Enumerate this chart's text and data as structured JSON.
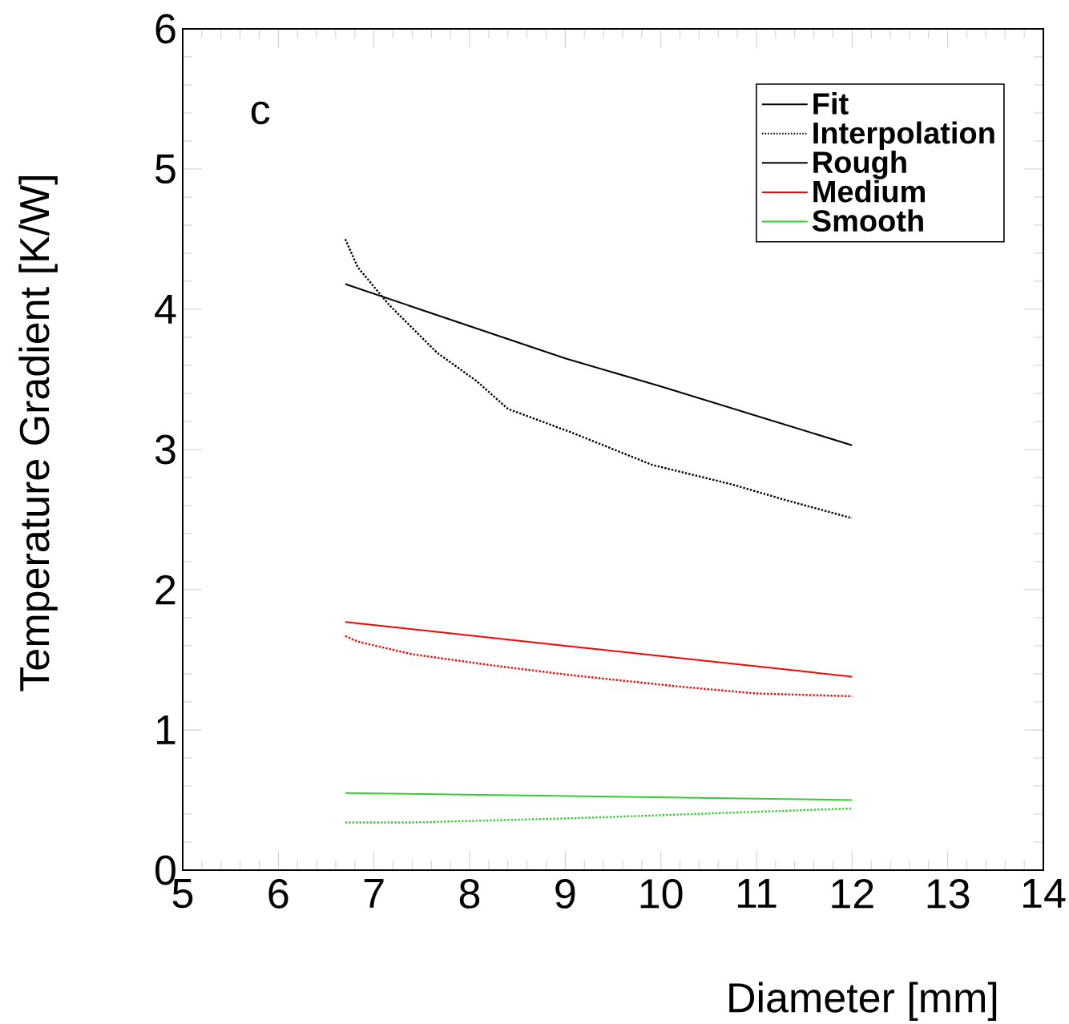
{
  "chart_data": {
    "type": "line",
    "xlabel": "Diameter [mm]",
    "ylabel": "Temperature Gradient [K/W]",
    "annotations": [
      "c",
      "Fit",
      "Interpolation"
    ],
    "xlim": [
      5,
      14
    ],
    "ylim": [
      0,
      6
    ],
    "xticks": [
      5,
      6,
      7,
      8,
      9,
      10,
      11,
      12,
      13,
      14
    ],
    "yticks": [
      0,
      1,
      2,
      3,
      4,
      5,
      6
    ],
    "legend": "top right",
    "grid": false,
    "series": [
      {
        "name": "Rough",
        "color": "#000000",
        "line_style": "solid",
        "x": [
          6.7,
          8,
          9,
          10,
          11,
          12
        ],
        "values": [
          4.18,
          3.88,
          3.65,
          3.45,
          3.24,
          3.03
        ]
      },
      {
        "color": "#000000",
        "line_style": "dotted",
        "x": [
          6.7,
          6.83,
          7.16,
          7.66,
          8.07,
          8.4,
          9.07,
          9.91,
          10.75,
          11.3,
          12
        ],
        "values": [
          4.5,
          4.3,
          4.03,
          3.69,
          3.49,
          3.29,
          3.12,
          2.89,
          2.75,
          2.64,
          2.51
        ]
      },
      {
        "name": "Medium",
        "color": "#ff0000",
        "line_style": "solid",
        "x": [
          6.7,
          9,
          12
        ],
        "values": [
          1.77,
          1.6,
          1.38
        ]
      },
      {
        "color": "#ff0000",
        "line_style": "dotted",
        "x": [
          6.7,
          6.83,
          7.4,
          8.24,
          9.07,
          10.18,
          11.0,
          12
        ],
        "values": [
          1.67,
          1.63,
          1.54,
          1.46,
          1.39,
          1.31,
          1.26,
          1.24
        ]
      },
      {
        "name": "Smooth",
        "color": "#33cc33",
        "line_style": "solid",
        "x": [
          6.7,
          12
        ],
        "values": [
          0.55,
          0.5
        ]
      },
      {
        "color": "#33cc33",
        "line_style": "dotted",
        "x": [
          6.7,
          7.4,
          9.07,
          10.75,
          12
        ],
        "values": [
          0.34,
          0.34,
          0.37,
          0.41,
          0.44
        ]
      }
    ]
  }
}
